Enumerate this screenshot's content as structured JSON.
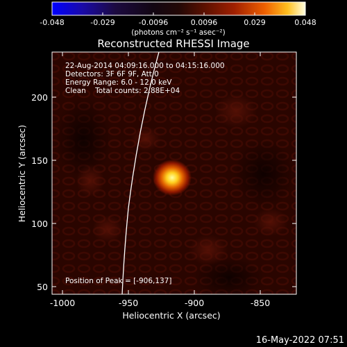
{
  "colorbar": {
    "tick_labels": [
      "-0.048",
      "-0.029",
      "-0.0096",
      "0.0096",
      "0.029",
      "0.048"
    ],
    "units": "(photons cm⁻² s⁻¹ asec⁻²)",
    "range": [
      -0.048,
      0.048
    ]
  },
  "image": {
    "title": "Reconstructed RHESSI Image",
    "xlabel": "Heliocentric X (arcsec)",
    "ylabel": "Heliocentric Y (arcsec)",
    "x_ticks": [
      "-1000",
      "-950",
      "-900",
      "-850"
    ],
    "y_ticks": [
      "50",
      "100",
      "150",
      "200"
    ],
    "annotations": [
      "22-Aug-2014 04:09:16.000 to 04:15:16.000",
      "Detectors: 3F 6F 9F, Att 0",
      "Energy Range: 6.0 - 12.0 keV",
      "Clean    Total counts: 2.88E+04"
    ],
    "peak_label": "Position of Peak = [-906,137]",
    "footer_date": "16-May-2022 07:51"
  },
  "colors": {
    "background": "#000000",
    "foreground": "#ffffff",
    "image_background": "#2a0500",
    "source_core": "#ffff80",
    "limb_line": "#ffffff"
  }
}
